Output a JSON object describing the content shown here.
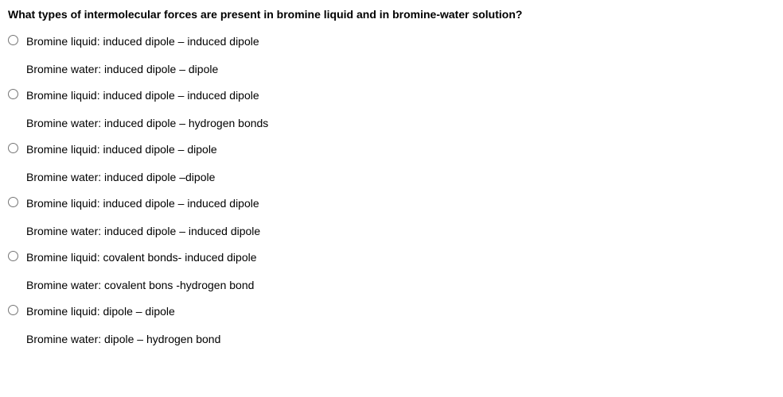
{
  "question": {
    "title": "What types of intermolecular forces are present in bromine liquid and in bromine-water solution?",
    "options": [
      {
        "line1": "Bromine liquid: induced dipole – induced dipole",
        "line2": "Bromine water: induced dipole – dipole"
      },
      {
        "line1": "Bromine liquid: induced dipole – induced dipole",
        "line2": "Bromine water: induced dipole – hydrogen bonds"
      },
      {
        "line1": "Bromine liquid: induced dipole – dipole",
        "line2": "Bromine water: induced dipole –dipole"
      },
      {
        "line1": "Bromine liquid: induced dipole – induced dipole",
        "line2": "Bromine water: induced dipole – induced dipole"
      },
      {
        "line1": "Bromine liquid: covalent bonds- induced dipole",
        "line2": "Bromine water: covalent bons -hydrogen bond"
      },
      {
        "line1": "Bromine liquid:  dipole – dipole",
        "line2": "Bromine water: dipole – hydrogen bond"
      }
    ]
  }
}
